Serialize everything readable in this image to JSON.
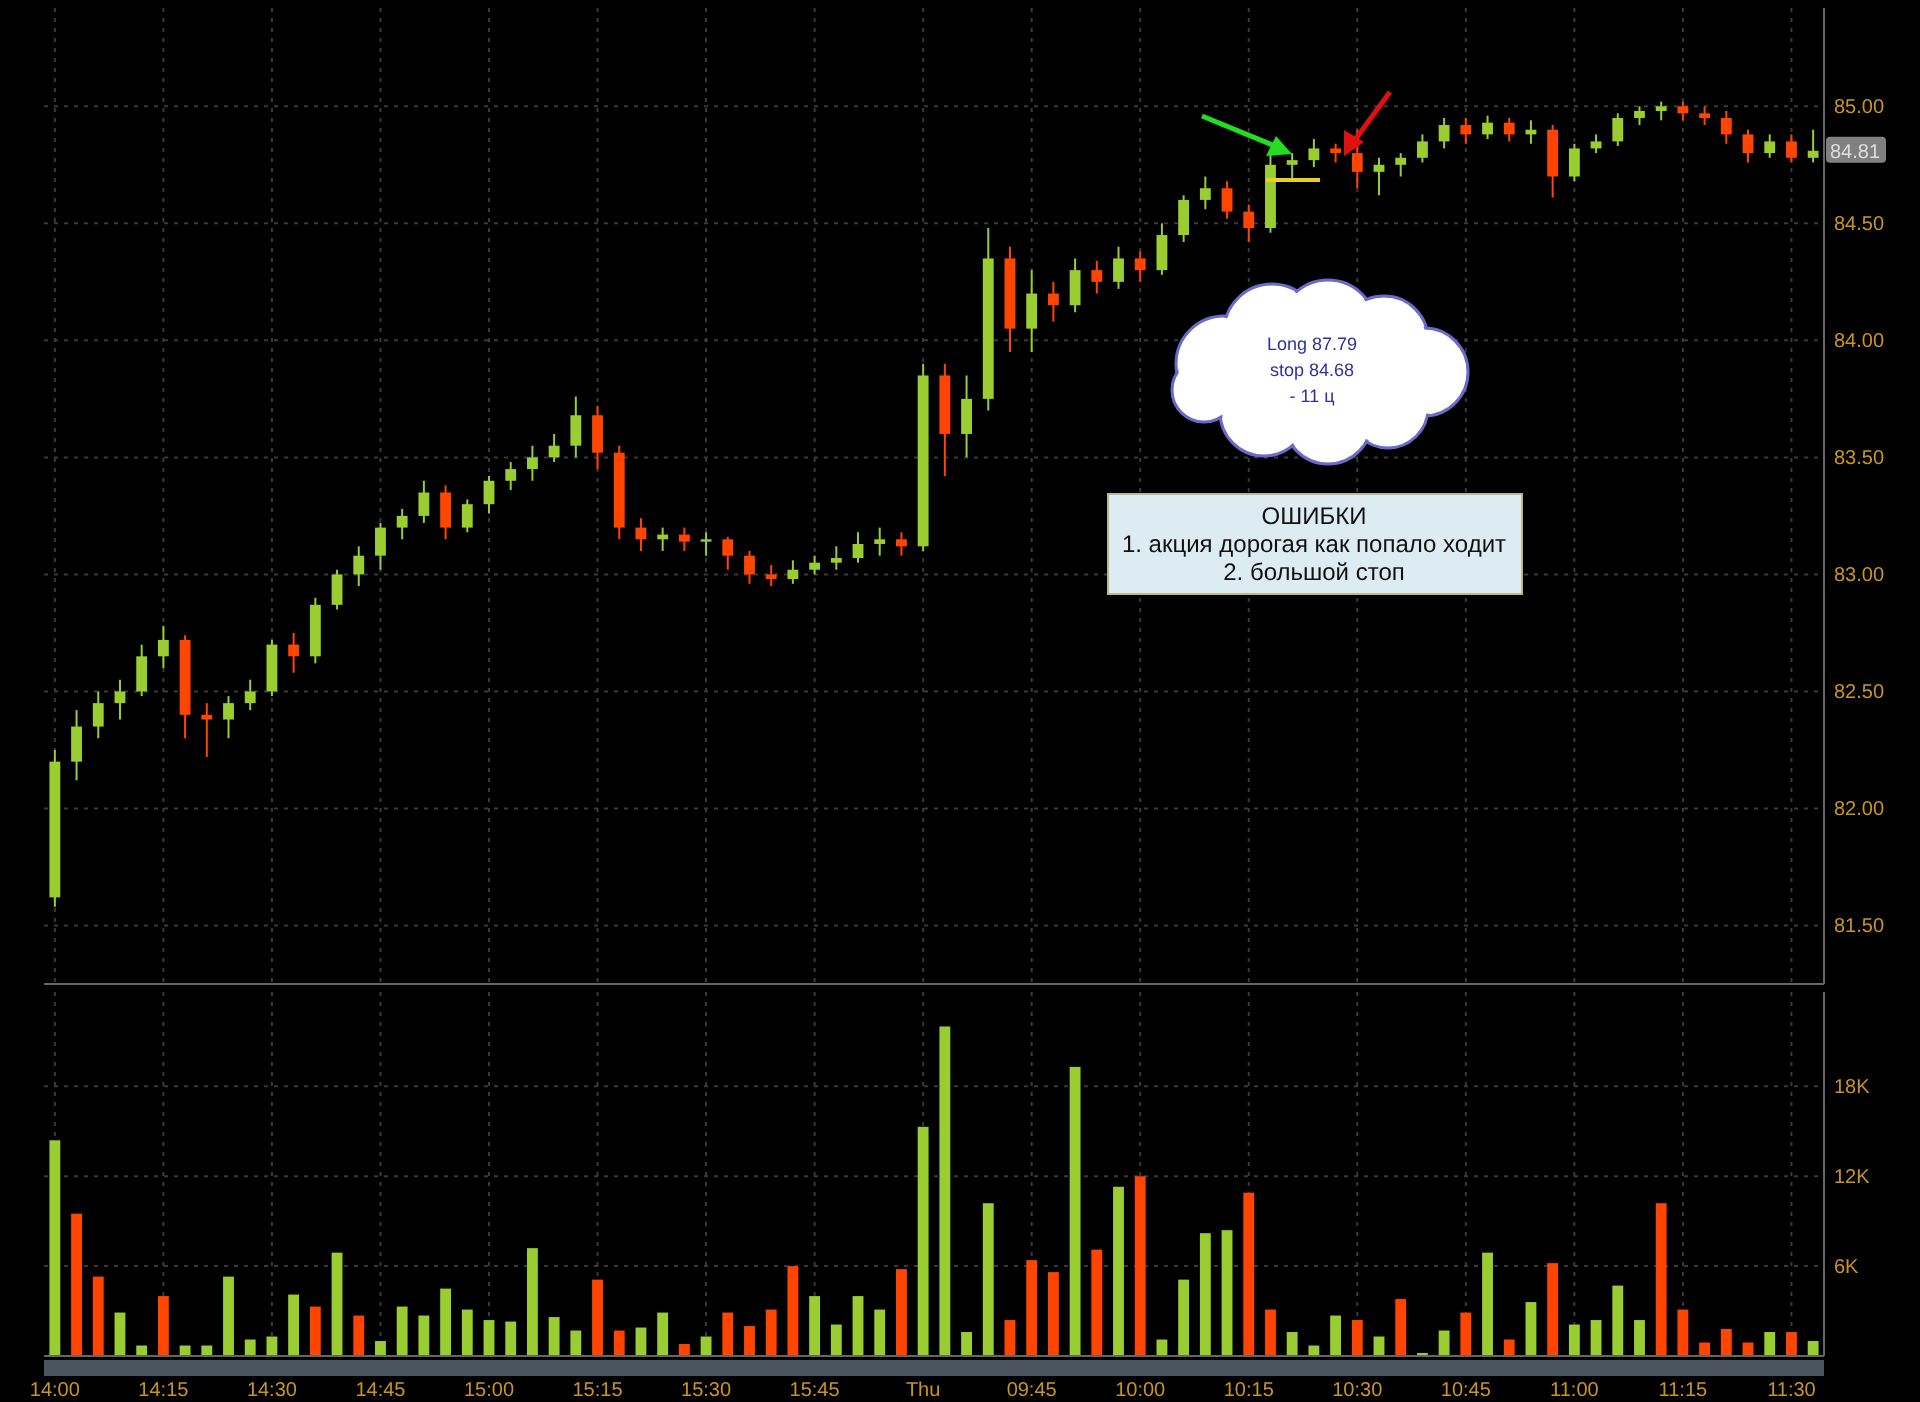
{
  "chart_data": [
    {
      "type": "candlestick",
      "categories": [
        null,
        null,
        null,
        null,
        null,
        null,
        null,
        null,
        null,
        null,
        null,
        null,
        null,
        null,
        null,
        null,
        null,
        null,
        null,
        null,
        null,
        null,
        null,
        null,
        null,
        null,
        null,
        null,
        null,
        null,
        null,
        null,
        null,
        null,
        null,
        null,
        null,
        null,
        null,
        null,
        null,
        null,
        null,
        null,
        null,
        null,
        null,
        null,
        null,
        null,
        null,
        null,
        null,
        null,
        null,
        null,
        null,
        null,
        null,
        null,
        null,
        null,
        null,
        null,
        null,
        null,
        null,
        null,
        null,
        null,
        null,
        null,
        null,
        null,
        null,
        null,
        null,
        null,
        null,
        null,
        null,
        null
      ],
      "ohlc": [
        [
          81.62,
          82.25,
          81.58,
          82.2
        ],
        [
          82.2,
          82.42,
          82.12,
          82.35
        ],
        [
          82.35,
          82.5,
          82.3,
          82.45
        ],
        [
          82.45,
          82.55,
          82.38,
          82.5
        ],
        [
          82.5,
          82.7,
          82.48,
          82.65
        ],
        [
          82.65,
          82.78,
          82.6,
          82.72
        ],
        [
          82.72,
          82.74,
          82.3,
          82.4
        ],
        [
          82.4,
          82.45,
          82.22,
          82.38
        ],
        [
          82.38,
          82.48,
          82.3,
          82.45
        ],
        [
          82.45,
          82.55,
          82.42,
          82.5
        ],
        [
          82.5,
          82.72,
          82.48,
          82.7
        ],
        [
          82.7,
          82.75,
          82.58,
          82.65
        ],
        [
          82.65,
          82.9,
          82.62,
          82.87
        ],
        [
          82.87,
          83.02,
          82.85,
          83.0
        ],
        [
          83.0,
          83.12,
          82.95,
          83.08
        ],
        [
          83.08,
          83.22,
          83.02,
          83.2
        ],
        [
          83.2,
          83.28,
          83.15,
          83.25
        ],
        [
          83.25,
          83.4,
          83.22,
          83.35
        ],
        [
          83.35,
          83.38,
          83.15,
          83.2
        ],
        [
          83.2,
          83.32,
          83.18,
          83.3
        ],
        [
          83.3,
          83.42,
          83.26,
          83.4
        ],
        [
          83.4,
          83.48,
          83.36,
          83.45
        ],
        [
          83.45,
          83.55,
          83.4,
          83.5
        ],
        [
          83.5,
          83.6,
          83.48,
          83.55
        ],
        [
          83.55,
          83.76,
          83.5,
          83.68
        ],
        [
          83.68,
          83.72,
          83.45,
          83.52
        ],
        [
          83.52,
          83.55,
          83.15,
          83.2
        ],
        [
          83.2,
          83.24,
          83.1,
          83.15
        ],
        [
          83.15,
          83.2,
          83.1,
          83.17
        ],
        [
          83.17,
          83.2,
          83.1,
          83.14
        ],
        [
          83.14,
          83.18,
          83.08,
          83.15
        ],
        [
          83.15,
          83.16,
          83.02,
          83.08
        ],
        [
          83.08,
          83.1,
          82.96,
          83.0
        ],
        [
          83.0,
          83.04,
          82.95,
          82.98
        ],
        [
          82.98,
          83.06,
          82.96,
          83.02
        ],
        [
          83.02,
          83.08,
          83.0,
          83.05
        ],
        [
          83.05,
          83.12,
          83.02,
          83.07
        ],
        [
          83.07,
          83.18,
          83.05,
          83.13
        ],
        [
          83.13,
          83.2,
          83.08,
          83.15
        ],
        [
          83.15,
          83.18,
          83.08,
          83.12
        ],
        [
          83.12,
          83.9,
          83.1,
          83.85
        ],
        [
          83.85,
          83.9,
          83.42,
          83.6
        ],
        [
          83.6,
          83.85,
          83.5,
          83.75
        ],
        [
          83.75,
          84.48,
          83.7,
          84.35
        ],
        [
          84.35,
          84.4,
          83.95,
          84.05
        ],
        [
          84.05,
          84.3,
          83.95,
          84.2
        ],
        [
          84.2,
          84.25,
          84.08,
          84.15
        ],
        [
          84.15,
          84.35,
          84.12,
          84.3
        ],
        [
          84.3,
          84.34,
          84.2,
          84.25
        ],
        [
          84.25,
          84.4,
          84.22,
          84.35
        ],
        [
          84.35,
          84.38,
          84.25,
          84.3
        ],
        [
          84.3,
          84.5,
          84.28,
          84.45
        ],
        [
          84.45,
          84.62,
          84.42,
          84.6
        ],
        [
          84.6,
          84.7,
          84.56,
          84.65
        ],
        [
          84.65,
          84.68,
          84.52,
          84.55
        ],
        [
          84.55,
          84.58,
          84.42,
          84.48
        ],
        [
          84.48,
          84.8,
          84.46,
          84.75
        ],
        [
          84.75,
          84.8,
          84.68,
          84.77
        ],
        [
          84.77,
          84.86,
          84.74,
          84.82
        ],
        [
          84.82,
          84.84,
          84.76,
          84.8
        ],
        [
          84.8,
          84.9,
          84.65,
          84.72
        ],
        [
          84.72,
          84.78,
          84.62,
          84.75
        ],
        [
          84.75,
          84.8,
          84.7,
          84.78
        ],
        [
          84.78,
          84.88,
          84.76,
          84.85
        ],
        [
          84.85,
          84.95,
          84.82,
          84.92
        ],
        [
          84.92,
          84.95,
          84.84,
          84.88
        ],
        [
          84.88,
          84.96,
          84.86,
          84.93
        ],
        [
          84.93,
          84.95,
          84.85,
          84.88
        ],
        [
          84.88,
          84.94,
          84.84,
          84.9
        ],
        [
          84.9,
          84.92,
          84.61,
          84.7
        ],
        [
          84.7,
          84.84,
          84.68,
          84.82
        ],
        [
          84.82,
          84.88,
          84.8,
          84.85
        ],
        [
          84.85,
          84.97,
          84.83,
          84.95
        ],
        [
          84.95,
          85.0,
          84.92,
          84.98
        ],
        [
          84.98,
          85.02,
          84.94,
          85.0
        ],
        [
          85.0,
          85.02,
          84.94,
          84.97
        ],
        [
          84.97,
          85.0,
          84.92,
          84.95
        ],
        [
          84.95,
          84.98,
          84.84,
          84.88
        ],
        [
          84.88,
          84.9,
          84.76,
          84.8
        ],
        [
          84.8,
          84.88,
          84.78,
          84.85
        ],
        [
          84.85,
          84.88,
          84.76,
          84.78
        ],
        [
          84.78,
          84.9,
          84.76,
          84.81
        ]
      ],
      "colors": [
        "#9acd32",
        "#9acd32",
        "#9acd32",
        "#9acd32",
        "#9acd32",
        "#9acd32",
        "#ff4500",
        "#ff4500",
        "#9acd32",
        "#9acd32",
        "#9acd32",
        "#ff4500",
        "#9acd32",
        "#9acd32",
        "#9acd32",
        "#9acd32",
        "#9acd32",
        "#9acd32",
        "#ff4500",
        "#9acd32",
        "#9acd32",
        "#9acd32",
        "#9acd32",
        "#9acd32",
        "#9acd32",
        "#ff4500",
        "#ff4500",
        "#ff4500",
        "#9acd32",
        "#ff4500",
        "#9acd32",
        "#ff4500",
        "#ff4500",
        "#ff4500",
        "#9acd32",
        "#9acd32",
        "#9acd32",
        "#9acd32",
        "#9acd32",
        "#ff4500",
        "#9acd32",
        "#ff4500",
        "#9acd32",
        "#9acd32",
        "#ff4500",
        "#9acd32",
        "#ff4500",
        "#9acd32",
        "#ff4500",
        "#9acd32",
        "#ff4500",
        "#9acd32",
        "#9acd32",
        "#9acd32",
        "#ff4500",
        "#ff4500",
        "#9acd32",
        "#9acd32",
        "#9acd32",
        "#ff4500",
        "#ff4500",
        "#9acd32",
        "#9acd32",
        "#9acd32",
        "#9acd32",
        "#ff4500",
        "#9acd32",
        "#ff4500",
        "#9acd32",
        "#ff4500",
        "#9acd32",
        "#9acd32",
        "#9acd32",
        "#9acd32",
        "#9acd32",
        "#ff4500",
        "#ff4500",
        "#ff4500",
        "#ff4500",
        "#9acd32",
        "#ff4500",
        "#9acd32"
      ],
      "ylim": [
        81.25,
        85.42
      ],
      "yticks": [
        {
          "value": 81.5,
          "label": "81.50"
        },
        {
          "value": 82,
          "label": "82.00"
        },
        {
          "value": 82.5,
          "label": "82.50"
        },
        {
          "value": 83,
          "label": "83.00"
        },
        {
          "value": 83.5,
          "label": "83.50"
        },
        {
          "value": 84,
          "label": "84.00"
        },
        {
          "value": 84.5,
          "label": "84.50"
        },
        {
          "value": 85,
          "label": "85.00"
        }
      ],
      "annotations": [
        "Long 87.79",
        "stop 84.68",
        "- 11 ц",
        "ОШИБКИ",
        "1. акция дорогая как попало ходит",
        "2. большой стоп",
        {
          "text": "84.81",
          "y": 84.81
        }
      ],
      "grid": true,
      "tick_labels": "y"
    },
    {
      "type": "bar",
      "categories": [
        "14:00",
        null,
        null,
        null,
        null,
        "14:15",
        null,
        null,
        null,
        null,
        "14:30",
        null,
        null,
        null,
        null,
        "14:45",
        null,
        null,
        null,
        null,
        "15:00",
        null,
        null,
        null,
        null,
        "15:15",
        null,
        null,
        null,
        null,
        "15:30",
        null,
        null,
        null,
        null,
        "15:45",
        null,
        null,
        null,
        null,
        "Thu",
        null,
        null,
        null,
        null,
        "09:45",
        null,
        null,
        null,
        null,
        "10:00",
        null,
        null,
        null,
        null,
        "10:15",
        null,
        null,
        null,
        null,
        "10:30",
        null,
        null,
        null,
        null,
        "10:45",
        null,
        null,
        null,
        null,
        "11:00",
        null,
        null,
        null,
        null,
        "11:15",
        null,
        null,
        null,
        null,
        "11:30",
        null
      ],
      "values": [
        14400,
        9500,
        5300,
        2900,
        700,
        4000,
        700,
        700,
        5300,
        1100,
        1300,
        4100,
        3300,
        6900,
        2700,
        1000,
        3300,
        2700,
        4500,
        3100,
        2400,
        2300,
        7200,
        2600,
        1700,
        5100,
        1700,
        1900,
        2900,
        800,
        1300,
        2900,
        2000,
        3100,
        6000,
        4000,
        2100,
        4000,
        3100,
        5800,
        15300,
        22000,
        1600,
        10200,
        2400,
        6400,
        5600,
        19300,
        7100,
        11300,
        12000,
        1100,
        5100,
        8200,
        8400,
        10900,
        3100,
        1600,
        700,
        2700,
        2400,
        1300,
        3800,
        200,
        1700,
        2900,
        6900,
        1100,
        3600,
        6200,
        2100,
        2400,
        4700,
        2400,
        10200,
        3100,
        900,
        1800,
        900,
        1600,
        1600,
        1000
      ],
      "colors": [
        "#9acd32",
        "#ff4500",
        "#ff4500",
        "#9acd32",
        "#9acd32",
        "#ff4500",
        "#9acd32",
        "#9acd32",
        "#9acd32",
        "#9acd32",
        "#9acd32",
        "#9acd32",
        "#ff4500",
        "#9acd32",
        "#ff4500",
        "#9acd32",
        "#9acd32",
        "#9acd32",
        "#9acd32",
        "#9acd32",
        "#9acd32",
        "#9acd32",
        "#9acd32",
        "#9acd32",
        "#9acd32",
        "#ff4500",
        "#ff4500",
        "#9acd32",
        "#9acd32",
        "#ff4500",
        "#9acd32",
        "#ff4500",
        "#ff4500",
        "#ff4500",
        "#ff4500",
        "#9acd32",
        "#9acd32",
        "#9acd32",
        "#9acd32",
        "#ff4500",
        "#9acd32",
        "#9acd32",
        "#9acd32",
        "#9acd32",
        "#ff4500",
        "#ff4500",
        "#ff4500",
        "#9acd32",
        "#ff4500",
        "#9acd32",
        "#ff4500",
        "#9acd32",
        "#9acd32",
        "#9acd32",
        "#9acd32",
        "#ff4500",
        "#ff4500",
        "#9acd32",
        "#9acd32",
        "#9acd32",
        "#ff4500",
        "#9acd32",
        "#ff4500",
        "#9acd32",
        "#9acd32",
        "#ff4500",
        "#9acd32",
        "#ff4500",
        "#9acd32",
        "#ff4500",
        "#9acd32",
        "#9acd32",
        "#9acd32",
        "#9acd32",
        "#ff4500",
        "#ff4500",
        "#ff4500",
        "#ff4500",
        "#ff4500",
        "#9acd32",
        "#ff4500",
        "#9acd32"
      ],
      "ylim": [
        0,
        24300
      ],
      "yticks": [
        {
          "value": 6000,
          "label": "6K"
        },
        {
          "value": 12000,
          "label": "12K"
        },
        {
          "value": 18000,
          "label": "18K"
        }
      ],
      "grid": true
    }
  ]
}
